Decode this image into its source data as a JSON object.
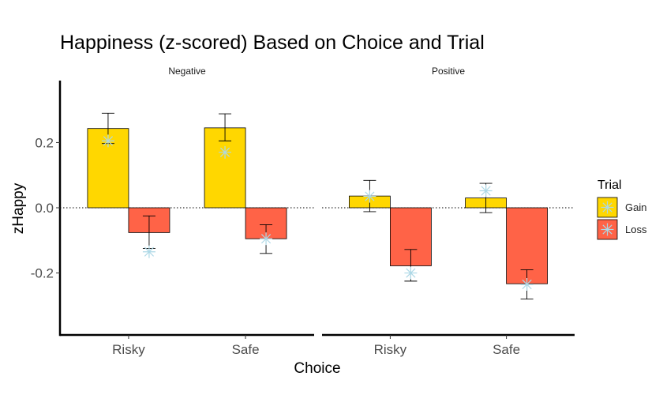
{
  "chart_data": {
    "type": "bar",
    "title": "Happiness (z-scored) Based on Choice and Trial",
    "xlabel": "Choice",
    "ylabel": "zHappy",
    "ylim": [
      -0.39,
      0.39
    ],
    "yticks": [
      -0.2,
      0.0,
      0.2
    ],
    "ytick_labels": [
      "-0.2",
      "0.0",
      "0.2"
    ],
    "categories": [
      "Risky",
      "Safe"
    ],
    "grid": false,
    "reference_line": 0,
    "legend": {
      "title": "Trial",
      "placement": "right"
    },
    "panels": [
      {
        "label": "Negative",
        "series": [
          {
            "name": "Gain",
            "color": "#FFD700",
            "values": [
              0.243,
              0.245
            ],
            "err_low": [
              0.197,
              0.205
            ],
            "err_high": [
              0.29,
              0.288
            ],
            "points": [
              0.205,
              0.17
            ]
          },
          {
            "name": "Loss",
            "color": "#FF6347",
            "values": [
              -0.076,
              -0.095
            ],
            "err_low": [
              -0.125,
              -0.14
            ],
            "err_high": [
              -0.025,
              -0.052
            ],
            "points": [
              -0.135,
              -0.095
            ]
          }
        ]
      },
      {
        "label": "Positive",
        "series": [
          {
            "name": "Gain",
            "color": "#FFD700",
            "values": [
              0.036,
              0.03
            ],
            "err_low": [
              -0.012,
              -0.015
            ],
            "err_high": [
              0.084,
              0.075
            ],
            "points": [
              0.035,
              0.052
            ]
          },
          {
            "name": "Loss",
            "color": "#FF6347",
            "values": [
              -0.178,
              -0.233
            ],
            "err_low": [
              -0.225,
              -0.28
            ],
            "err_high": [
              -0.128,
              -0.19
            ],
            "points": [
              -0.2,
              -0.235
            ]
          }
        ]
      }
    ],
    "point_marker": {
      "shape": "asterisk",
      "color": "#ADD8E6"
    }
  }
}
